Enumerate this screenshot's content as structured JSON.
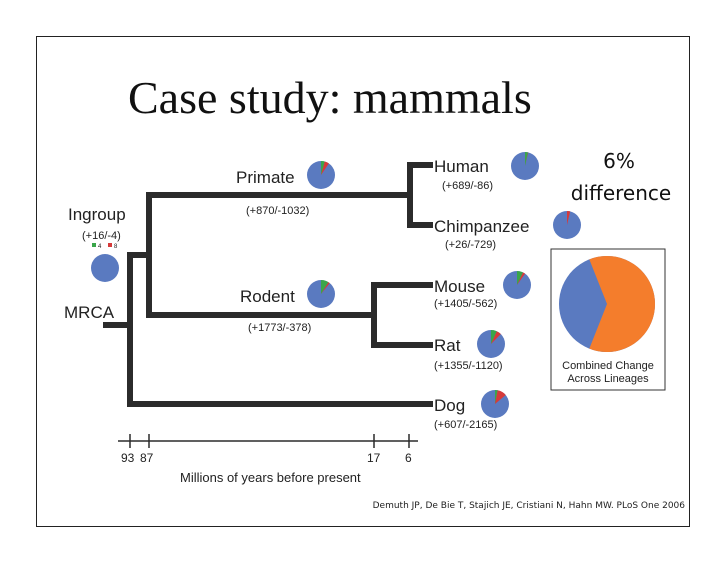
{
  "title": "Case study: mammals",
  "citation": "Demuth JP, De Bie T, Stajich JE, Cristiani N, Hahn MW. PLoS One 2006",
  "colors": {
    "blue": "#5a7ac0",
    "orange": "#f47d2c",
    "green": "#3aa64a",
    "red": "#d63a3a",
    "tree": "#2b2b2b"
  },
  "difference": {
    "line1": "6%",
    "line2": "difference"
  },
  "ingroup": {
    "label": "Ingroup",
    "counts": "(+16/-4)",
    "legend_gain": "4",
    "legend_loss": "8"
  },
  "mrca": {
    "label": "MRCA"
  },
  "nodes": {
    "primate": {
      "label": "Primate",
      "counts": "(+870/-1032)"
    },
    "rodent": {
      "label": "Rodent",
      "counts": "(+1773/-378)"
    },
    "human": {
      "label": "Human",
      "counts": "(+689/-86)"
    },
    "chimpanzee": {
      "label": "Chimpanzee",
      "counts": "(+26/-729)"
    },
    "mouse": {
      "label": "Mouse",
      "counts": "(+1405/-562)"
    },
    "rat": {
      "label": "Rat",
      "counts": "(+1355/-1120)"
    },
    "dog": {
      "label": "Dog",
      "counts": "(+607/-2165)"
    }
  },
  "combined": {
    "line1": "Combined Change",
    "line2": "Across Lineages",
    "orange_fraction": 0.62
  },
  "axis": {
    "label": "Millions of years before present",
    "ticks": [
      "93",
      "87",
      "17",
      "6"
    ]
  }
}
